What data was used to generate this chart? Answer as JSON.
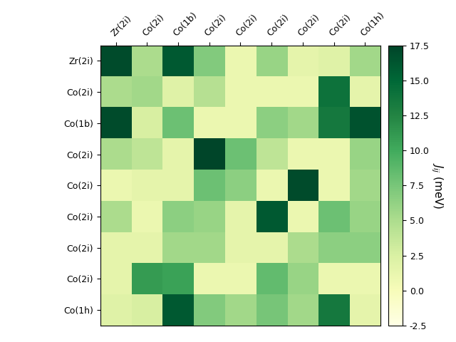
{
  "labels": [
    "Zr(2i)",
    "Co(2i)",
    "Co(1b)",
    "Co(2i)",
    "Co(2i)",
    "Co(2i)",
    "Co(2i)",
    "Co(2i)",
    "Co(1h)"
  ],
  "matrix": [
    [
      17.0,
      5.0,
      16.0,
      7.0,
      1.0,
      6.0,
      1.5,
      2.0,
      5.5
    ],
    [
      5.0,
      5.5,
      2.0,
      4.5,
      1.0,
      1.0,
      1.0,
      14.0,
      1.5
    ],
    [
      17.0,
      2.5,
      8.0,
      1.0,
      1.0,
      6.5,
      5.5,
      13.5,
      16.5
    ],
    [
      5.0,
      4.0,
      1.5,
      17.5,
      8.0,
      4.0,
      1.0,
      1.0,
      6.0
    ],
    [
      1.0,
      1.5,
      1.5,
      8.0,
      6.5,
      1.0,
      17.0,
      1.0,
      5.5
    ],
    [
      5.0,
      1.0,
      6.5,
      6.0,
      1.5,
      16.0,
      1.0,
      8.0,
      6.0
    ],
    [
      1.5,
      1.5,
      5.5,
      5.5,
      1.5,
      1.5,
      5.0,
      6.5,
      6.5
    ],
    [
      1.5,
      11.0,
      10.5,
      1.0,
      1.0,
      8.5,
      6.0,
      1.0,
      1.0
    ],
    [
      2.0,
      2.5,
      16.0,
      7.0,
      5.5,
      7.5,
      5.5,
      13.5,
      1.5
    ]
  ],
  "vmin": -2.5,
  "vmax": 17.5,
  "cmap": "YlGn",
  "colorbar_label": "$J_{ij}$ (meV)",
  "colorbar_ticks": [
    -2.5,
    0.0,
    2.5,
    5.0,
    7.5,
    10.0,
    12.5,
    15.0,
    17.5
  ],
  "colorbar_ticklabels": [
    "-2.5",
    "0.0",
    "2.5",
    "5.0",
    "7.5",
    "10.0",
    "12.5",
    "15.0",
    "17.5"
  ],
  "figsize": [
    6.4,
    4.8
  ],
  "dpi": 100
}
